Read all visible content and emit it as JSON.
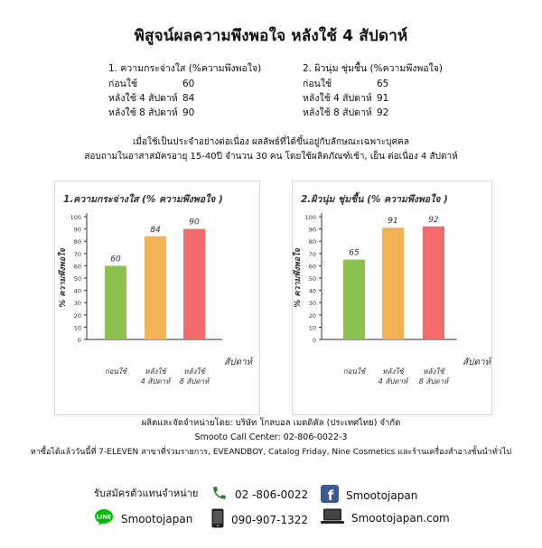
{
  "title": "พิสูจน์ผลความพึงพอใจ หลังใช้ 4 สัปดาห์",
  "summary": [
    {
      "heading": "1. ความกระจ่างใส (%ความพึงพอใจ)",
      "rows": [
        {
          "label": "ก่อนใช้",
          "value": "60"
        },
        {
          "label": "หลังใช้ 4 สัปดาห์",
          "value": "84"
        },
        {
          "label": "หลังใช้ 8 สัปดาห์",
          "value": "90"
        }
      ]
    },
    {
      "heading": "2. ผิวนุ่ม ชุ่มชื้น (%ความพึงพอใจ)",
      "rows": [
        {
          "label": "ก่อนใช้",
          "value": "65"
        },
        {
          "label": "หลังใช้ 4 สัปดาห์",
          "value": "91"
        },
        {
          "label": "หลังใช้ 8 สัปดาห์",
          "value": "92"
        }
      ]
    }
  ],
  "description": {
    "line1": "เมื่อใช้เป็นประจำอย่างต่อเนื่อง ผลลัพธ์ที่ได้ขึ้นอยู่กับลักษณะเฉพาะบุคคล",
    "line2": "สอบถามในอาสาสมัครอายุ 15-40ปี จำนวน 30 คน โดยใช้ผลิตภัณฑ์เช้า, เย็น ต่อเนื่อง 4 สัปดาห์"
  },
  "chart_data": [
    {
      "type": "bar",
      "title": "1.ความกระจ่างใส (% ความพึงพอใจ )",
      "ylabel": "% ความพึงพอใจ",
      "xlabel": "สัปดาห์",
      "categories": [
        [
          "ก่อนใช้"
        ],
        [
          "หลังใช้",
          "4 สัปดาห์"
        ],
        [
          "หลังใช้",
          "8 สัปดาห์"
        ]
      ],
      "values": [
        60,
        84,
        90
      ],
      "value_labels": [
        "60",
        "84",
        "90"
      ],
      "colors": [
        "#8cc152",
        "#f2b052",
        "#f46a6a"
      ],
      "ylim": [
        0,
        100
      ],
      "yticks": [
        0,
        10,
        20,
        30,
        40,
        50,
        60,
        70,
        80,
        90,
        100
      ],
      "grid": false,
      "legend": "none"
    },
    {
      "type": "bar",
      "title": "2.ผิวนุ่ม ชุ่มชื้น (% ความพึงพอใจ )",
      "ylabel": "% ความพึงพอใจ",
      "xlabel": "สัปดาห์",
      "categories": [
        [
          "ก่อนใช้"
        ],
        [
          "หลังใช้",
          "4 สัปดาห์"
        ],
        [
          "หลังใช้",
          "8 สัปดาห์"
        ]
      ],
      "values": [
        65,
        91,
        92
      ],
      "value_labels": [
        "65",
        "91",
        "92"
      ],
      "colors": [
        "#8cc152",
        "#f2b052",
        "#f46a6a"
      ],
      "ylim": [
        0,
        100
      ],
      "yticks": [
        0,
        10,
        20,
        30,
        40,
        50,
        60,
        70,
        80,
        90,
        100
      ],
      "grid": false,
      "legend": "none"
    }
  ],
  "footer": {
    "distributor": "ผลิตและจัดจำหน่ายโดย: บริษัท โกลบอล เมดดิคัล (ประเทศไทย) จำกัด",
    "call_center": "Smooto Call Center: 02-806-0022-3",
    "stores": "หาซื้อได้แล้ววันนี้ที่ 7-ELEVEN สาขาที่ร่วมรายการ, EVEANDBOY, Catalog Friday, Nine Cosmetics และร้านเครื่องสำอางชั้นนำทั่วไป"
  },
  "contacts": {
    "agent_label": "รับสมัครตัวแทนจำหน่าย",
    "phone": "02 -806-0022",
    "facebook": "Smootojapan",
    "line": "Smootojapan",
    "mobile": "090-907-1322",
    "website": "Smootojapan.com",
    "line_icon_text": "LINE",
    "facebook_icon_text": "f"
  },
  "icons": {
    "phone": "phone-icon",
    "facebook": "facebook-icon",
    "line": "line-icon",
    "mobile": "mobile-icon",
    "website": "laptop-icon"
  },
  "colors": {
    "green": "#8cc152",
    "orange": "#f2b052",
    "red": "#f46a6a",
    "facebook": "#3b5998",
    "line": "#00b900"
  }
}
